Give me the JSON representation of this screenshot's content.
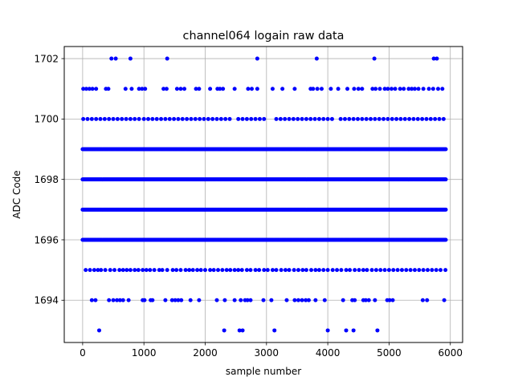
{
  "chart_data": {
    "type": "scatter",
    "title": "channel064 logain raw data",
    "xlabel": "sample number",
    "ylabel": "ADC Code",
    "xlim": [
      -300,
      6200
    ],
    "ylim": [
      1692.6,
      1702.4
    ],
    "xticks": [
      0,
      1000,
      2000,
      3000,
      4000,
      5000,
      6000
    ],
    "yticks": [
      1694,
      1696,
      1698,
      1700,
      1702
    ],
    "grid": true,
    "marker_color": "#0000ff",
    "dense_levels": [
      1696,
      1697,
      1698,
      1699
    ],
    "dense_range": [
      0,
      5930
    ],
    "series": [
      {
        "level": 1693,
        "x": [
          270,
          2310,
          2560,
          2610,
          3130,
          4000,
          4300,
          4420,
          4810
        ]
      },
      {
        "level": 1694,
        "x": [
          150,
          210,
          430,
          500,
          560,
          610,
          660,
          750,
          980,
          1010,
          1110,
          1140,
          1350,
          1460,
          1510,
          1560,
          1610,
          1760,
          1900,
          2190,
          2320,
          2480,
          2580,
          2650,
          2690,
          2740,
          2950,
          3080,
          3330,
          3460,
          3520,
          3580,
          3640,
          3690,
          3800,
          3950,
          4250,
          4400,
          4440,
          4580,
          4620,
          4670,
          4770,
          4970,
          5010,
          5060,
          5550,
          5620,
          5900
        ]
      },
      {
        "level": 1695,
        "x": [
          50,
          120,
          190,
          250,
          300,
          370,
          450,
          520,
          600,
          660,
          720,
          780,
          850,
          910,
          980,
          1040,
          1100,
          1170,
          1250,
          1300,
          1380,
          1470,
          1530,
          1600,
          1680,
          1740,
          1800,
          1870,
          1930,
          2000,
          2080,
          2140,
          2210,
          2280,
          2350,
          2410,
          2480,
          2540,
          2600,
          2680,
          2740,
          2820,
          2880,
          2960,
          3020,
          3100,
          3160,
          3240,
          3310,
          3370,
          3450,
          3520,
          3590,
          3650,
          3730,
          3800,
          3860,
          3930,
          4000,
          4080,
          4150,
          4220,
          4300,
          4360,
          4440,
          4510,
          4580,
          4640,
          4720,
          4790,
          4860,
          4930,
          5000,
          5070,
          5140,
          5210,
          5280,
          5350,
          5420,
          5490,
          5560,
          5630,
          5700,
          5770,
          5840,
          5920
        ]
      },
      {
        "level": 1700,
        "x": [
          10,
          80,
          150,
          220,
          290,
          360,
          430,
          500,
          570,
          640,
          710,
          780,
          850,
          920,
          1000,
          1070,
          1140,
          1210,
          1280,
          1350,
          1420,
          1490,
          1560,
          1630,
          1700,
          1770,
          1840,
          1910,
          1980,
          2050,
          2120,
          2190,
          2260,
          2330,
          2400,
          2540,
          2610,
          2680,
          2750,
          2820,
          2890,
          2960,
          3160,
          3230,
          3300,
          3370,
          3440,
          3510,
          3580,
          3650,
          3720,
          3790,
          3860,
          3930,
          4000,
          4070,
          4210,
          4280,
          4350,
          4420,
          4490,
          4560,
          4630,
          4700,
          4770,
          4840,
          4910,
          4980,
          5050,
          5120,
          5190,
          5260,
          5330,
          5400,
          5470,
          5540,
          5610,
          5680,
          5750,
          5820,
          5890
        ]
      },
      {
        "level": 1701,
        "x": [
          10,
          60,
          110,
          160,
          220,
          380,
          420,
          700,
          800,
          920,
          970,
          1020,
          1320,
          1370,
          1540,
          1600,
          1660,
          1850,
          1900,
          2080,
          2200,
          2240,
          2290,
          2480,
          2700,
          2760,
          2850,
          3100,
          3260,
          3460,
          3720,
          3760,
          3830,
          3900,
          4050,
          4170,
          4320,
          4430,
          4500,
          4560,
          4730,
          4780,
          4850,
          4930,
          4980,
          5040,
          5100,
          5180,
          5240,
          5320,
          5370,
          5420,
          5480,
          5560,
          5650,
          5720,
          5800,
          5870
        ]
      },
      {
        "level": 1702,
        "x": [
          470,
          540,
          780,
          1380,
          2850,
          3820,
          4760,
          5730,
          5780
        ]
      }
    ]
  }
}
